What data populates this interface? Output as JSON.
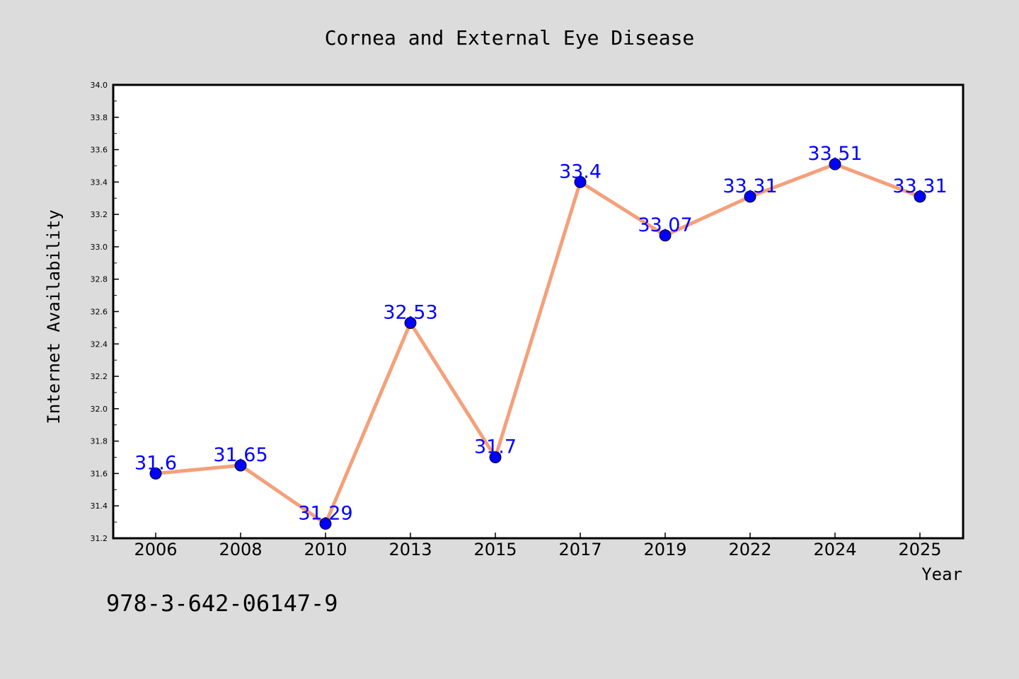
{
  "chart_data": {
    "type": "line",
    "title": "Cornea and External Eye Disease",
    "xlabel": "Year",
    "ylabel": "Internet Availability",
    "categories": [
      "2006",
      "2008",
      "2010",
      "2013",
      "2015",
      "2017",
      "2019",
      "2022",
      "2024",
      "2025"
    ],
    "series": [
      {
        "values": [
          31.6,
          31.65,
          31.29,
          32.53,
          31.7,
          33.4,
          33.07,
          33.31,
          33.51,
          33.31
        ],
        "labels": [
          "31.6",
          "31.65",
          "31.29",
          "32.53",
          "31.7",
          "33.4",
          "33.07",
          "33.31",
          "33.51",
          "33.31"
        ],
        "line_color": "#f4a07a",
        "marker_color": "#0000ff"
      }
    ],
    "ylim": [
      31.2,
      34.0
    ],
    "yticks": [
      "31.2",
      "31.4",
      "31.6",
      "31.8",
      "32.0",
      "32.2",
      "32.4",
      "32.6",
      "32.8",
      "33.0",
      "33.2",
      "33.4",
      "33.6",
      "33.8",
      "34.0"
    ],
    "grid": false,
    "legend": "none"
  },
  "footnote": "978-3-642-06147-9",
  "colors": {
    "background": "#dcdcdc",
    "plot_background": "#ffffff",
    "line": "#f4a07a",
    "marker": "#0000ff",
    "data_label": "#0000ff"
  }
}
